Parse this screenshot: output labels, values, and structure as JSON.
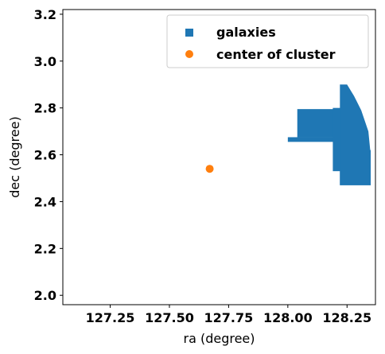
{
  "chart_data": {
    "type": "scatter",
    "xlabel": "ra (degree)",
    "ylabel": "dec (degree)",
    "xlim": [
      127.05,
      128.37
    ],
    "ylim": [
      1.96,
      3.22
    ],
    "xticks": [
      127.25,
      127.5,
      127.75,
      128.0,
      128.25
    ],
    "xtick_labels": [
      "127.25",
      "127.50",
      "127.75",
      "128.00",
      "128.25"
    ],
    "yticks": [
      2.0,
      2.2,
      2.4,
      2.6,
      2.8,
      3.0,
      3.2
    ],
    "ytick_labels": [
      "2.0",
      "2.2",
      "2.4",
      "2.6",
      "2.8",
      "3.0",
      "3.2"
    ],
    "legend_position": "top-right",
    "series": [
      {
        "name": "galaxies",
        "marker": "square",
        "color": "#1f77b4",
        "regions": [
          {
            "x_range": [
              128.0,
              128.23
            ],
            "y_range": [
              2.655,
              2.675
            ]
          },
          {
            "x_range": [
              128.04,
              128.23
            ],
            "y_range": [
              2.675,
              2.795
            ]
          },
          {
            "x_range": [
              128.19,
              128.27
            ],
            "y_range": [
              2.53,
              2.8
            ]
          },
          {
            "x_range": [
              128.22,
              128.35
            ],
            "y_range": [
              2.47,
              2.62
            ]
          }
        ],
        "cluster_outline": [
          [
            128.22,
            2.9
          ],
          [
            128.25,
            2.9
          ],
          [
            128.28,
            2.85
          ],
          [
            128.31,
            2.79
          ],
          [
            128.34,
            2.7
          ],
          [
            128.35,
            2.6
          ],
          [
            128.35,
            2.47
          ],
          [
            128.22,
            2.47
          ]
        ]
      },
      {
        "name": "center of cluster",
        "marker": "circle",
        "color": "#ff7f0e",
        "points": [
          {
            "x": 127.67,
            "y": 2.54
          }
        ]
      }
    ]
  }
}
